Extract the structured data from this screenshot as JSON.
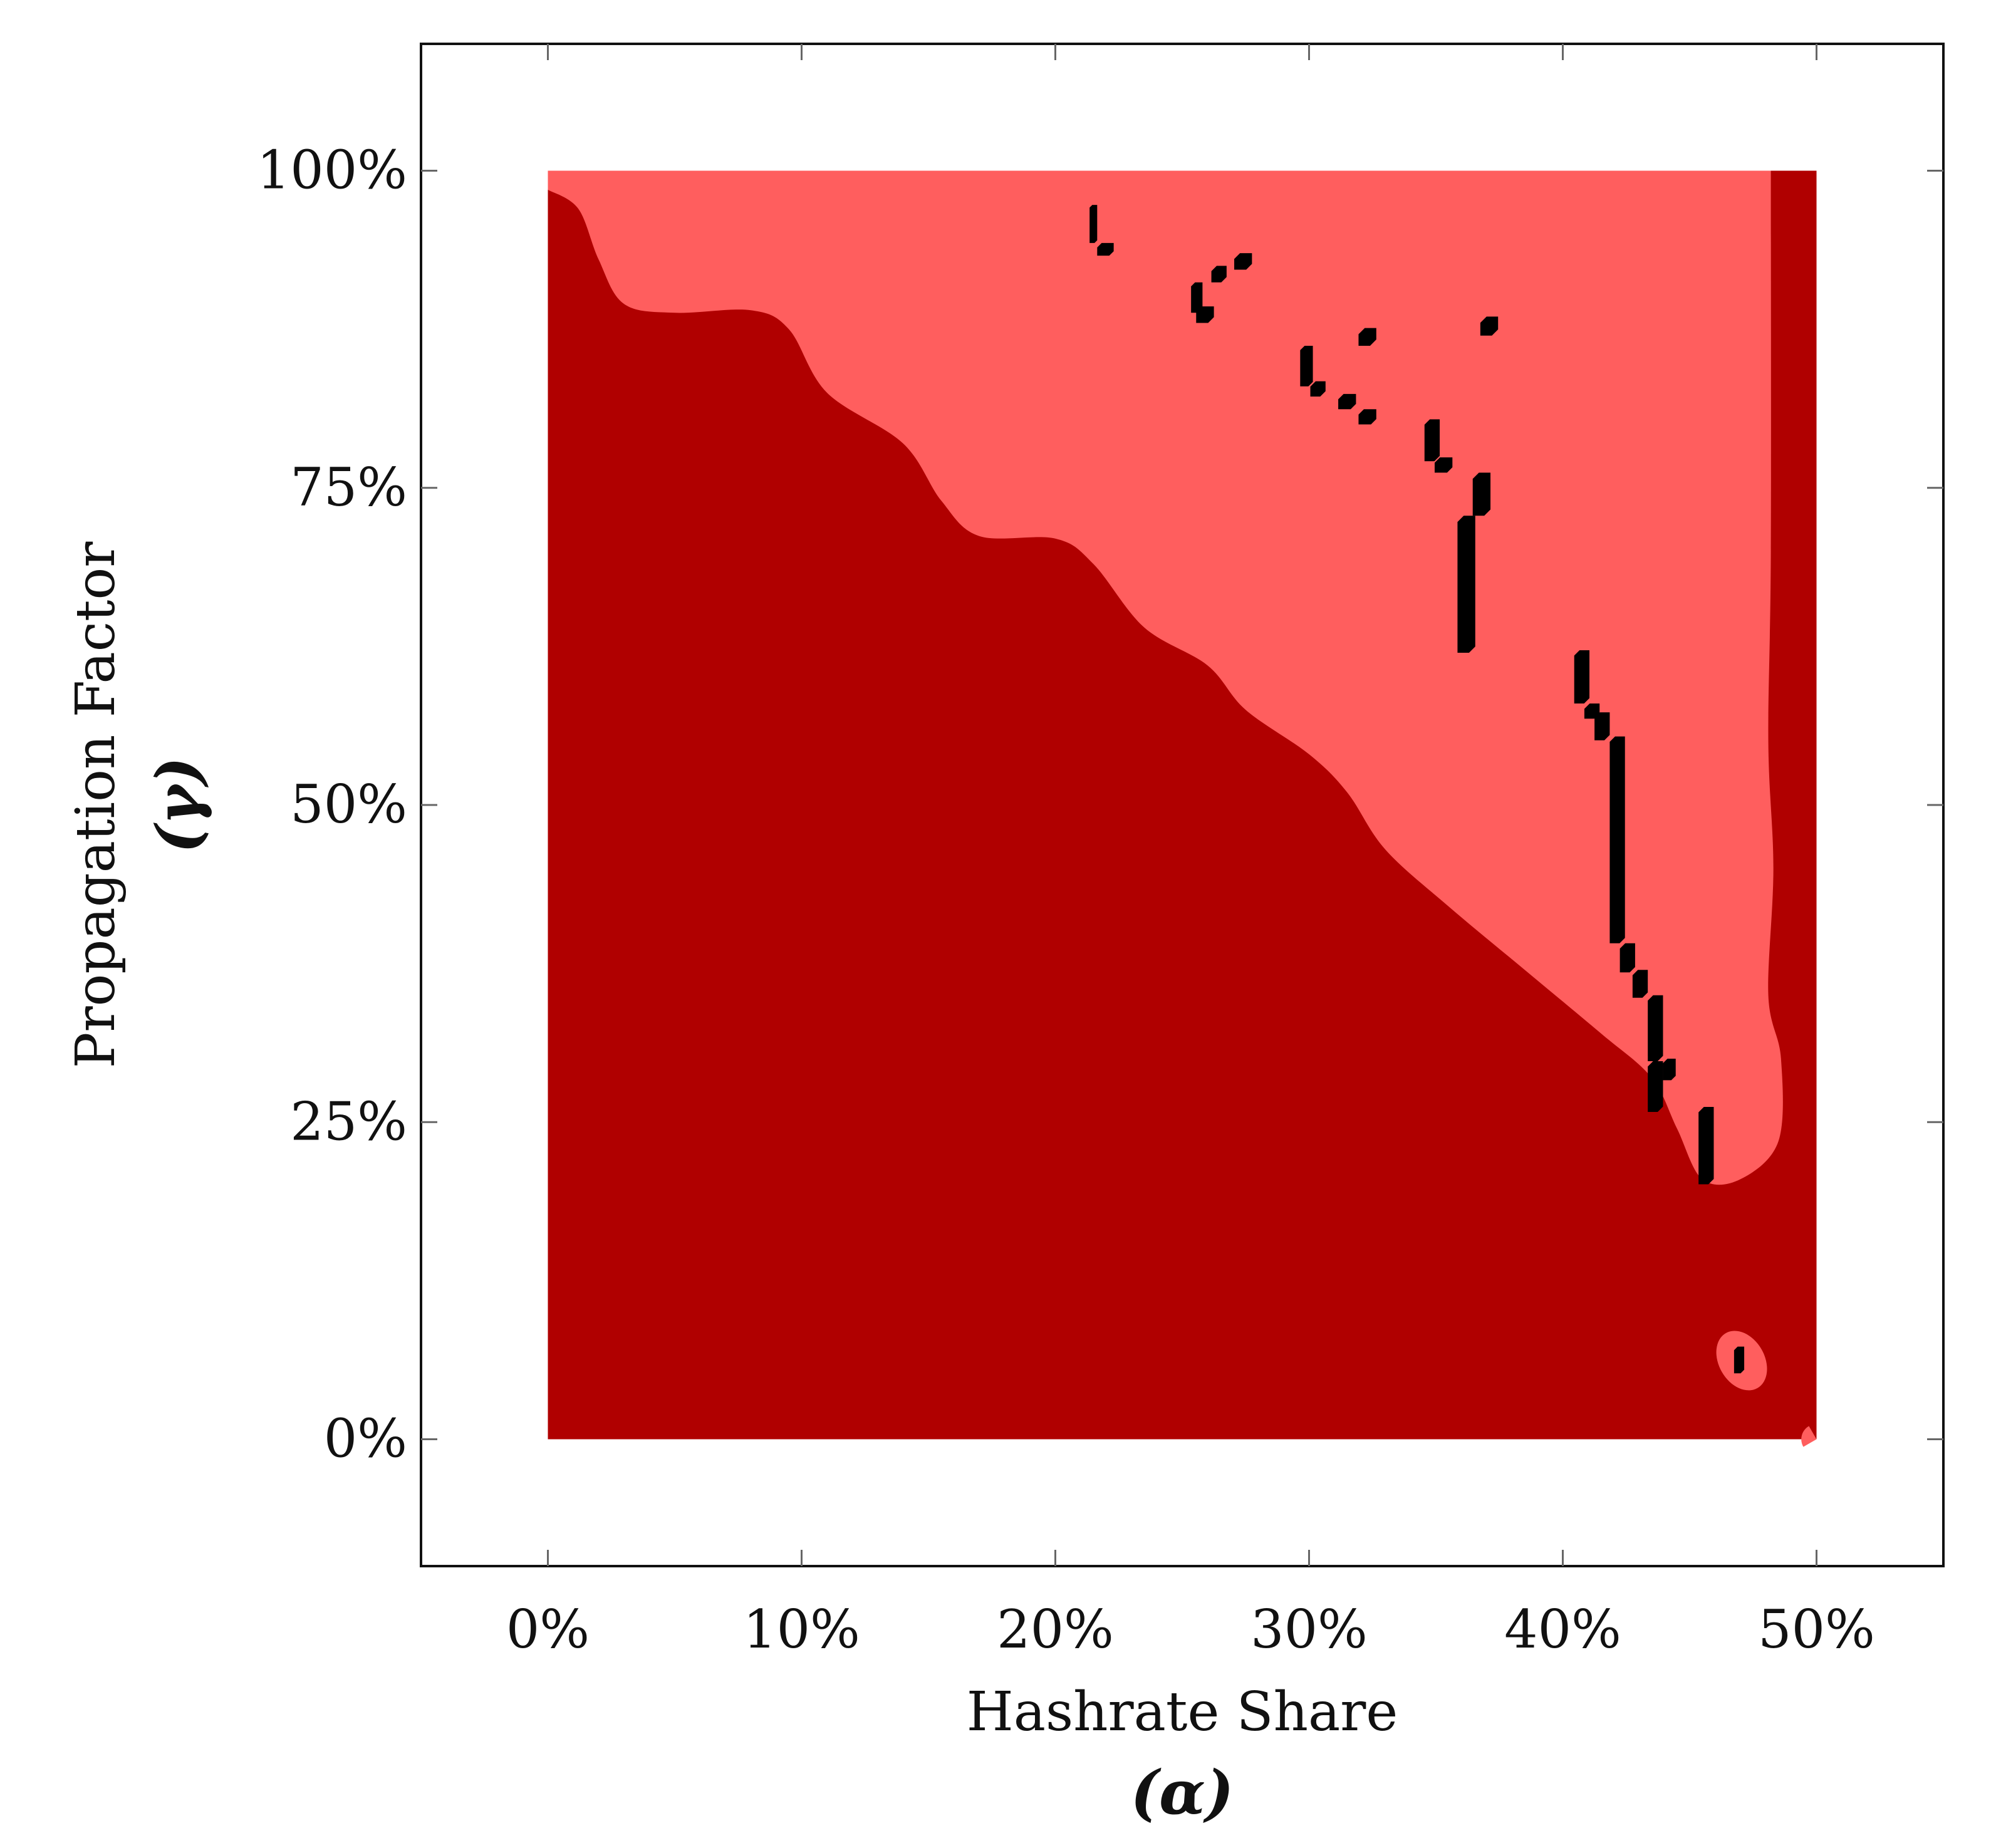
{
  "chart_data": {
    "type": "heatmap",
    "title": "",
    "xlabel": "Hashrate Share",
    "xlabel_symbol": "(α)",
    "ylabel": "Propagation Factor",
    "ylabel_symbol": "(γ)",
    "xlim": [
      -0.05,
      0.55
    ],
    "ylim": [
      -0.1,
      1.1
    ],
    "x_ticks": [
      {
        "value": 0.0,
        "label": "0%"
      },
      {
        "value": 0.1,
        "label": "10%"
      },
      {
        "value": 0.2,
        "label": "20%"
      },
      {
        "value": 0.3,
        "label": "30%"
      },
      {
        "value": 0.4,
        "label": "40%"
      },
      {
        "value": 0.5,
        "label": "50%"
      }
    ],
    "y_ticks": [
      {
        "value": 0.0,
        "label": "0%"
      },
      {
        "value": 0.25,
        "label": "25%"
      },
      {
        "value": 0.5,
        "label": "50%"
      },
      {
        "value": 0.75,
        "label": "75%"
      },
      {
        "value": 1.0,
        "label": "100%"
      }
    ],
    "grid": false,
    "legend": "none",
    "colors": {
      "dark_region": "#b00000",
      "light_region": "#ff5e5e",
      "marks": "#000000"
    },
    "data_extent": {
      "x": [
        0.0,
        0.5
      ],
      "y": [
        0.0,
        1.0
      ]
    },
    "dark_region_boundary": [
      [
        0.0,
        0.985
      ],
      [
        0.012,
        0.97
      ],
      [
        0.02,
        0.93
      ],
      [
        0.03,
        0.895
      ],
      [
        0.05,
        0.888
      ],
      [
        0.08,
        0.89
      ],
      [
        0.095,
        0.875
      ],
      [
        0.11,
        0.825
      ],
      [
        0.14,
        0.785
      ],
      [
        0.155,
        0.74
      ],
      [
        0.17,
        0.712
      ],
      [
        0.2,
        0.71
      ],
      [
        0.215,
        0.69
      ],
      [
        0.235,
        0.64
      ],
      [
        0.26,
        0.61
      ],
      [
        0.275,
        0.575
      ],
      [
        0.3,
        0.54
      ],
      [
        0.315,
        0.51
      ],
      [
        0.33,
        0.465
      ],
      [
        0.355,
        0.42
      ],
      [
        0.385,
        0.37
      ],
      [
        0.415,
        0.32
      ],
      [
        0.435,
        0.285
      ],
      [
        0.445,
        0.245
      ],
      [
        0.455,
        0.205
      ],
      [
        0.47,
        0.205
      ],
      [
        0.485,
        0.235
      ],
      [
        0.486,
        0.3
      ],
      [
        0.481,
        0.35
      ],
      [
        0.483,
        0.45
      ],
      [
        0.481,
        0.55
      ],
      [
        0.482,
        0.7
      ],
      [
        0.482,
        1.0
      ]
    ],
    "light_islands": [
      {
        "x": 0.4705,
        "y": 0.062,
        "rx": 0.009,
        "ry": 0.025
      },
      {
        "x": 0.5,
        "y": 0.0,
        "rx": 0.006,
        "ry": 0.012
      }
    ],
    "black_marks": [
      [
        0.2135,
        0.943,
        0.2165,
        0.973
      ],
      [
        0.2165,
        0.933,
        0.223,
        0.943
      ],
      [
        0.2535,
        0.888,
        0.258,
        0.912
      ],
      [
        0.2555,
        0.88,
        0.2625,
        0.893
      ],
      [
        0.2615,
        0.912,
        0.2675,
        0.925
      ],
      [
        0.2705,
        0.922,
        0.2775,
        0.935
      ],
      [
        0.2965,
        0.83,
        0.3015,
        0.862
      ],
      [
        0.3005,
        0.822,
        0.3065,
        0.834
      ],
      [
        0.3115,
        0.812,
        0.3185,
        0.824
      ],
      [
        0.3195,
        0.8,
        0.3265,
        0.812
      ],
      [
        0.3195,
        0.862,
        0.3265,
        0.876
      ],
      [
        0.3675,
        0.87,
        0.3745,
        0.885
      ],
      [
        0.3455,
        0.771,
        0.3515,
        0.804
      ],
      [
        0.3495,
        0.762,
        0.3565,
        0.774
      ],
      [
        0.3585,
        0.62,
        0.3655,
        0.728
      ],
      [
        0.3645,
        0.728,
        0.3715,
        0.762
      ],
      [
        0.4045,
        0.58,
        0.4105,
        0.622
      ],
      [
        0.4085,
        0.568,
        0.4145,
        0.58
      ],
      [
        0.4125,
        0.551,
        0.4185,
        0.573
      ],
      [
        0.4185,
        0.391,
        0.4245,
        0.554
      ],
      [
        0.4225,
        0.368,
        0.4285,
        0.391
      ],
      [
        0.4275,
        0.348,
        0.4335,
        0.37
      ],
      [
        0.4335,
        0.298,
        0.4395,
        0.35
      ],
      [
        0.4335,
        0.258,
        0.4395,
        0.298
      ],
      [
        0.4395,
        0.283,
        0.4445,
        0.3
      ],
      [
        0.4535,
        0.201,
        0.4595,
        0.262
      ],
      [
        0.4675,
        0.052,
        0.4715,
        0.073
      ]
    ]
  }
}
